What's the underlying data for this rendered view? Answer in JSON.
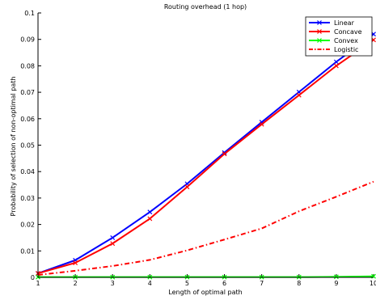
{
  "chart_data": {
    "type": "line",
    "title": "Routing overhead (1 hop)",
    "xlabel": "Length of optimal path",
    "ylabel": "Probability of selection of non-optimal path",
    "xlim": [
      1,
      10
    ],
    "ylim": [
      0,
      0.1
    ],
    "x_ticks": [
      1,
      2,
      3,
      4,
      5,
      6,
      7,
      8,
      9,
      10
    ],
    "y_ticks": [
      0,
      0.01,
      0.02,
      0.03,
      0.04,
      0.05,
      0.06,
      0.07,
      0.08,
      0.09,
      0.1
    ],
    "grid": false,
    "legend_position": "top-right",
    "x": [
      1,
      2,
      3,
      4,
      5,
      6,
      7,
      8,
      9,
      10
    ],
    "series": [
      {
        "name": "Linear",
        "color": "#0000ff",
        "line_style": "solid",
        "marker": "x",
        "values": [
          0.0015,
          0.0065,
          0.015,
          0.0247,
          0.0354,
          0.0472,
          0.0587,
          0.0701,
          0.0815,
          0.092
        ]
      },
      {
        "name": "Concave",
        "color": "#ff0000",
        "line_style": "solid",
        "marker": "x",
        "values": [
          0.0015,
          0.0055,
          0.0128,
          0.0222,
          0.0342,
          0.0467,
          0.0579,
          0.0689,
          0.08,
          0.0898
        ]
      },
      {
        "name": "Convex",
        "color": "#00ff00",
        "line_style": "solid",
        "marker": "x",
        "values": [
          0.0001,
          0.0001,
          0.0001,
          0.0001,
          0.0001,
          0.0001,
          0.0001,
          0.0001,
          0.0002,
          0.0004
        ]
      },
      {
        "name": "Logistic",
        "color": "#ff0000",
        "line_style": "dashdot",
        "marker": "none",
        "values": [
          0.0009,
          0.0025,
          0.0043,
          0.0066,
          0.0102,
          0.0143,
          0.0185,
          0.025,
          0.0305,
          0.0362
        ]
      }
    ]
  }
}
